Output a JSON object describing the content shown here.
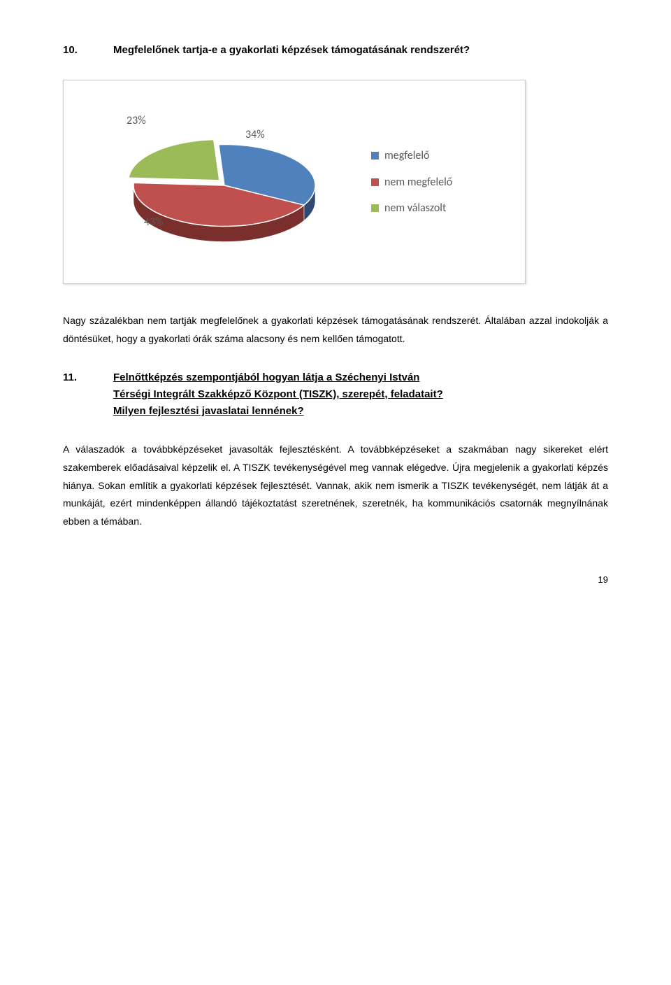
{
  "q10": {
    "number": "10.",
    "title": "Megfelelőnek tartja-e a gyakorlati képzések támogatásának rendszerét?"
  },
  "chart": {
    "type": "pie",
    "slices": [
      {
        "label": "megfelelő",
        "value": 34,
        "pct": "34%",
        "color": "#4f81bd",
        "side_color": "#2e4a73"
      },
      {
        "label": "nem megfelelő",
        "value": 43,
        "pct": "43%",
        "color": "#c0504d",
        "side_color": "#7a2f2d"
      },
      {
        "label": "nem válaszolt",
        "value": 23,
        "pct": "23%",
        "color": "#9bbb59",
        "side_color": "#5e7537"
      }
    ],
    "legend_items": [
      {
        "label": "megfelelő",
        "color": "#4f81bd"
      },
      {
        "label": "nem megfelelő",
        "color": "#c0504d"
      },
      {
        "label": "nem válaszolt",
        "color": "#9bbb59"
      }
    ],
    "label_color": "#595959",
    "label_fontsize": 16,
    "background_color": "#ffffff",
    "border_color": "#cccccc",
    "tilt": 0.45
  },
  "para1": "Nagy százalékban nem tartják megfelelőnek a gyakorlati képzések támogatásának rendszerét. Általában azzal indokolják a döntésüket, hogy a gyakorlati órák száma alacsony és nem kellően támogatott.",
  "q11": {
    "number": "11.",
    "line1": "Felnőttképzés szempontjából hogyan látja a Széchenyi István",
    "line2": "Térségi Integrált Szakképző Központ (TISZK), szerepét, feladatait?",
    "line3": "Milyen fejlesztési javaslatai lennének?"
  },
  "para2": "A válaszadók a továbbképzéseket javasolták fejlesztésként. A továbbképzéseket a szakmában nagy sikereket elért szakemberek előadásaival képzelik el. A TISZK tevékenységével meg vannak elégedve. Újra megjelenik a gyakorlati képzés hiánya. Sokan említik a gyakorlati képzések fejlesztését. Vannak, akik nem ismerik a TISZK tevékenységét, nem látják át a munkáját, ezért mindenképpen állandó tájékoztatást szeretnének, szeretnék, ha kommunikációs csatornák megnyílnának ebben a témában.",
  "page_number": "19"
}
